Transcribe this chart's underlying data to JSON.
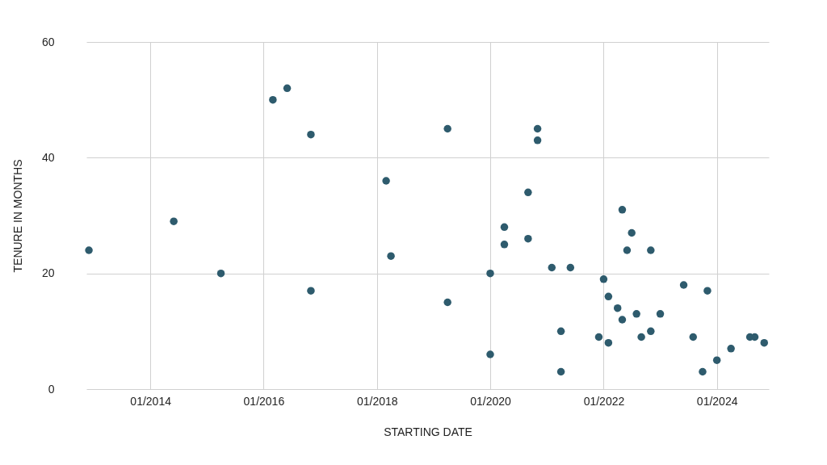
{
  "chart_data": {
    "type": "scatter",
    "xlabel": "STARTING DATE",
    "ylabel": "TENURE IN MONTHS",
    "x": [
      "2012-12",
      "2014-06",
      "2015-04",
      "2016-03",
      "2016-06",
      "2016-11",
      "2016-11",
      "2018-03",
      "2018-04",
      "2019-04",
      "2019-04",
      "2020-01",
      "2020-01",
      "2020-04",
      "2020-04",
      "2020-09",
      "2020-09",
      "2020-11",
      "2020-11",
      "2021-02",
      "2021-06",
      "2021-04",
      "2021-04",
      "2021-12",
      "2022-01",
      "2022-02",
      "2022-02",
      "2022-04",
      "2022-05",
      "2022-05",
      "2022-06",
      "2022-07",
      "2022-08",
      "2022-09",
      "2022-11",
      "2022-11",
      "2023-01",
      "2023-06",
      "2023-08",
      "2023-10",
      "2023-11",
      "2024-01",
      "2024-04",
      "2024-08",
      "2024-09",
      "2024-11"
    ],
    "series": [
      {
        "color": "#2e5b6d",
        "values": [
          24,
          29,
          20,
          50,
          52,
          44,
          17,
          36,
          23,
          45,
          15,
          20,
          6,
          28,
          25,
          34,
          26,
          45,
          43,
          21,
          21,
          10,
          3,
          9,
          19,
          16,
          8,
          14,
          31,
          12,
          24,
          27,
          13,
          9,
          24,
          10,
          13,
          18,
          9,
          3,
          17,
          5,
          7,
          9,
          9,
          8
        ]
      }
    ],
    "xlim": [
      "2012-11-15",
      "2024-12-01"
    ],
    "xticks": [
      {
        "value": "2014-01",
        "label": "01/2014"
      },
      {
        "value": "2016-01",
        "label": "01/2016"
      },
      {
        "value": "2018-01",
        "label": "01/2018"
      },
      {
        "value": "2020-01",
        "label": "01/2020"
      },
      {
        "value": "2022-01",
        "label": "01/2022"
      },
      {
        "value": "2024-01",
        "label": "01/2024"
      }
    ],
    "ylim": [
      0,
      60
    ],
    "yticks": [
      0,
      20,
      40,
      60
    ],
    "grid": true,
    "marker": "circle",
    "legend": false
  }
}
